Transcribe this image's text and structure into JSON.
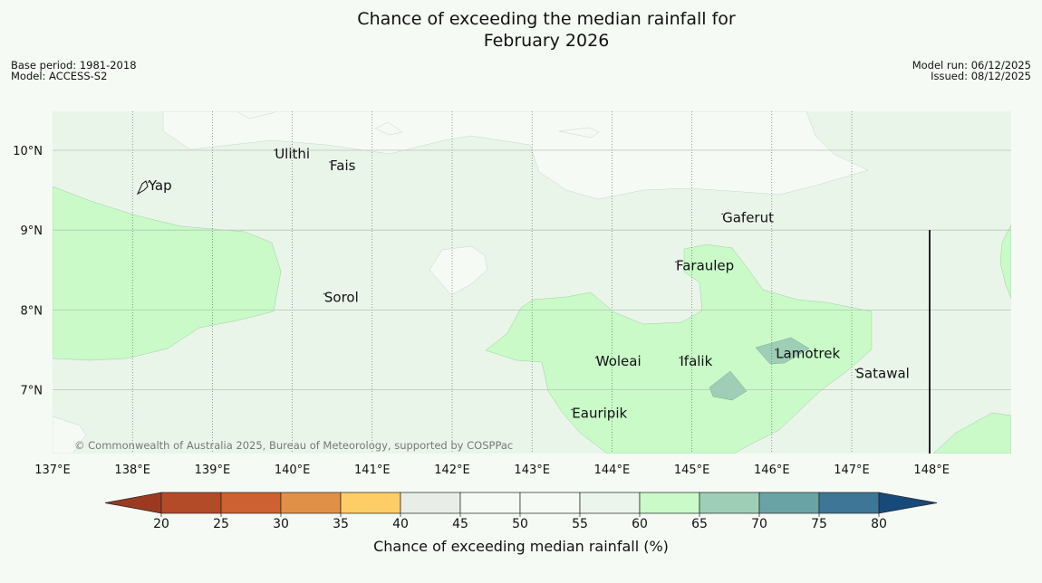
{
  "title_line1": "Chance of exceeding the median rainfall for",
  "title_line2": "February 2026",
  "base_period": "Base period: 1981-2018",
  "model": "Model: ACCESS-S2",
  "model_run": "Model run: 06/12/2025",
  "issued": "Issued: 08/12/2025",
  "copyright": "© Commonwealth of Australia 2025, Bureau of Meteorology, supported by COSPPac",
  "lon_labels": [
    "137°E",
    "138°E",
    "139°E",
    "140°E",
    "141°E",
    "142°E",
    "143°E",
    "144°E",
    "145°E",
    "146°E",
    "147°E",
    "148°E"
  ],
  "lat_labels": [
    "10°N",
    "9°N",
    "8°N",
    "7°N"
  ],
  "places": [
    {
      "name": "Yap",
      "lon": 138.2,
      "lat": 9.5
    },
    {
      "name": "Ulithi",
      "lon": 139.78,
      "lat": 9.9
    },
    {
      "name": "Fais",
      "lon": 140.47,
      "lat": 9.75
    },
    {
      "name": "Gaferut",
      "lon": 145.38,
      "lat": 9.1
    },
    {
      "name": "Faraulep",
      "lon": 144.8,
      "lat": 8.5
    },
    {
      "name": "Sorol",
      "lon": 140.4,
      "lat": 8.1
    },
    {
      "name": "Lamotrek",
      "lon": 146.05,
      "lat": 7.4
    },
    {
      "name": "Woleai",
      "lon": 143.8,
      "lat": 7.3
    },
    {
      "name": "Ifalik",
      "lon": 144.85,
      "lat": 7.3
    },
    {
      "name": "Satawal",
      "lon": 147.05,
      "lat": 7.15
    },
    {
      "name": "Eauripik",
      "lon": 143.5,
      "lat": 6.65
    }
  ],
  "colorbar": {
    "title": "Chance of exceeding median rainfall (%)",
    "ticks": [
      "20",
      "25",
      "30",
      "35",
      "40",
      "45",
      "50",
      "55",
      "60",
      "65",
      "70",
      "75",
      "80"
    ],
    "colors": [
      "#b34a28",
      "#cd6131",
      "#e09147",
      "#fecd66",
      "#e9ede7",
      "#f5faf5",
      "#f5faf5",
      "#ebf5eb",
      "#c9fac8",
      "#9ecfb6",
      "#6aa3a6",
      "#3d7697"
    ],
    "low_color": "#9b3a20",
    "high_color": "#17497a"
  },
  "palette": {
    "class_50_55": "#eaf5ea",
    "class_45_50": "#f5faf5",
    "class_60_65": "#c9fac8",
    "class_65_70": "#9ecfb6",
    "background": "#f5faf4"
  }
}
